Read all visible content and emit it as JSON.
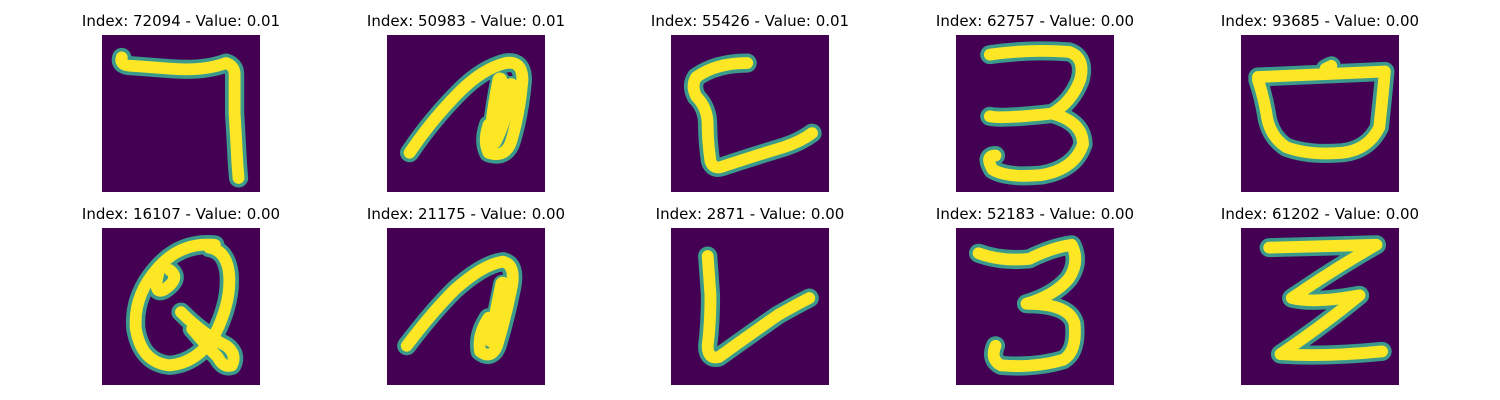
{
  "colors": {
    "background": "#440154",
    "stroke_core": "#fde725",
    "stroke_edge": "#3b9a8c"
  },
  "panels": [
    {
      "title": "Index: 72094 - Value: 0.01",
      "glyph": "seven"
    },
    {
      "title": "Index: 50983 - Value: 0.01",
      "glyph": "hook-blob"
    },
    {
      "title": "Index: 55426 - Value: 0.01",
      "glyph": "c-loop"
    },
    {
      "title": "Index: 62757 - Value: 0.00",
      "glyph": "three"
    },
    {
      "title": "Index: 93685 - Value: 0.00",
      "glyph": "cup"
    },
    {
      "title": "Index: 16107 - Value: 0.00",
      "glyph": "loop-q"
    },
    {
      "title": "Index: 21175 - Value: 0.00",
      "glyph": "hook-blob"
    },
    {
      "title": "Index: 2871 - Value: 0.00",
      "glyph": "v-shape"
    },
    {
      "title": "Index: 52183 - Value: 0.00",
      "glyph": "three"
    },
    {
      "title": "Index: 61202 - Value: 0.00",
      "glyph": "z-shape"
    }
  ]
}
